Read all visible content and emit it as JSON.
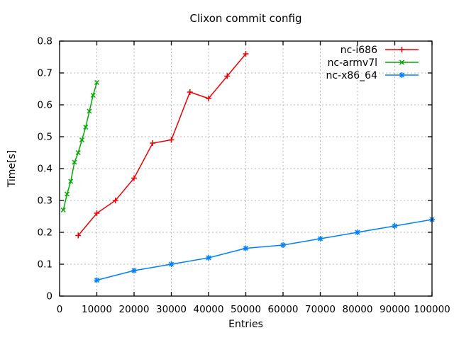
{
  "chart_data": {
    "type": "line",
    "title": "Clixon commit config",
    "xlabel": "Entries",
    "ylabel": "Time[s]",
    "xlim": [
      0,
      100000
    ],
    "ylim": [
      0,
      0.8
    ],
    "x_ticks": [
      0,
      10000,
      20000,
      30000,
      40000,
      50000,
      60000,
      70000,
      80000,
      90000,
      100000
    ],
    "x_tick_labels": [
      "0",
      "10000",
      "20000",
      "30000",
      "40000",
      "50000",
      "60000",
      "70000",
      "80000",
      "90000",
      "100000"
    ],
    "y_ticks": [
      0,
      0.1,
      0.2,
      0.3,
      0.4,
      0.5,
      0.6,
      0.7,
      0.8
    ],
    "y_tick_labels": [
      "0",
      "0.1",
      "0.2",
      "0.3",
      "0.4",
      "0.5",
      "0.6",
      "0.7",
      "0.8"
    ],
    "grid": true,
    "legend_position": "inside-top-right",
    "colors": {
      "background": "#ffffff",
      "grid": "#b8b8b8",
      "axis": "#000000",
      "text": "#000000"
    },
    "series": [
      {
        "name": "nc-i686",
        "color": "#ee0000",
        "marker": "plus",
        "x": [
          5000,
          10000,
          15000,
          20000,
          25000,
          30000,
          35000,
          40000,
          45000,
          50000
        ],
        "y": [
          0.19,
          0.26,
          0.3,
          0.37,
          0.48,
          0.49,
          0.64,
          0.62,
          0.69,
          0.76
        ]
      },
      {
        "name": "nc-armv7l",
        "color": "#00aa00",
        "marker": "cross",
        "x": [
          1000,
          2000,
          3000,
          4000,
          5000,
          6000,
          7000,
          8000,
          9000,
          10000
        ],
        "y": [
          0.27,
          0.32,
          0.36,
          0.42,
          0.45,
          0.49,
          0.53,
          0.58,
          0.63,
          0.67
        ]
      },
      {
        "name": "nc-x86_64",
        "color": "#0080ff",
        "marker": "asterisk",
        "x": [
          10000,
          20000,
          30000,
          40000,
          50000,
          60000,
          70000,
          80000,
          90000,
          100000
        ],
        "y": [
          0.05,
          0.08,
          0.1,
          0.12,
          0.15,
          0.16,
          0.18,
          0.2,
          0.22,
          0.24
        ]
      }
    ]
  }
}
